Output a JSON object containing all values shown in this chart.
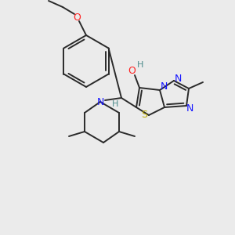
{
  "background_color": "#ebebeb",
  "bond_color": "#2a2a2a",
  "atom_colors": {
    "N": "#1515ff",
    "O": "#ff2020",
    "S": "#bbaa00",
    "H": "#4a8a8a",
    "C": "#2a2a2a"
  },
  "fig_width": 3.0,
  "fig_height": 3.0,
  "dpi": 100
}
